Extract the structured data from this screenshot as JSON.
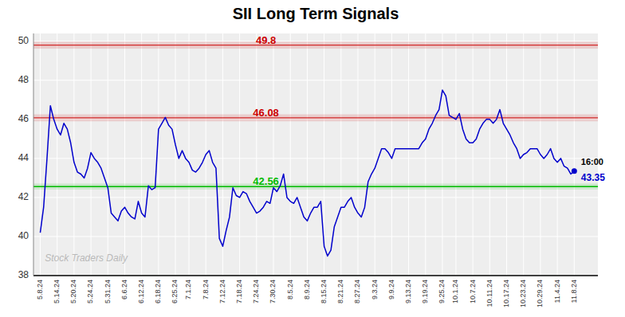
{
  "chart_data": {
    "type": "line",
    "title": "SII Long Term Signals",
    "watermark": "Stock Traders Daily",
    "color": "#0000cc",
    "grid": true,
    "ylim": [
      38,
      50.4
    ],
    "yticks": [
      38,
      40,
      42,
      44,
      46,
      48,
      50
    ],
    "hlines": [
      {
        "value": 49.8,
        "label": "49.8",
        "color": "#cc0000"
      },
      {
        "value": 46.08,
        "label": "46.08",
        "color": "#cc0000"
      },
      {
        "value": 42.56,
        "label": "42.56",
        "color": "#00bb00"
      }
    ],
    "last_point": {
      "value": 43.35,
      "label": "16:00",
      "value_label": "43.35"
    },
    "categories": [
      "5.8.24",
      null,
      null,
      null,
      null,
      "5.14.24",
      null,
      null,
      null,
      null,
      "5.20.24",
      null,
      null,
      null,
      null,
      "5.24.24",
      null,
      null,
      null,
      null,
      "5.31.24",
      null,
      null,
      null,
      null,
      "6.6.24",
      null,
      null,
      null,
      null,
      "6.12.24",
      null,
      null,
      null,
      null,
      "6.18.24",
      null,
      null,
      null,
      null,
      "6.25.24",
      null,
      null,
      null,
      "7.1.24",
      null,
      null,
      null,
      null,
      "7.8.24",
      null,
      null,
      null,
      null,
      "7.12.24",
      null,
      null,
      null,
      null,
      "7.18.24",
      null,
      null,
      null,
      null,
      "7.24.24",
      null,
      null,
      null,
      null,
      "7.30.24",
      null,
      null,
      null,
      null,
      "8.5.24",
      null,
      null,
      null,
      null,
      "8.9.24",
      null,
      null,
      null,
      null,
      "8.15.24",
      null,
      null,
      null,
      null,
      "8.21.24",
      null,
      null,
      null,
      null,
      "8.27.24",
      null,
      null,
      null,
      null,
      "9.3.24",
      null,
      null,
      null,
      null,
      "9.9.24",
      null,
      null,
      null,
      null,
      "9.13.24",
      null,
      null,
      null,
      null,
      "9.19.24",
      null,
      null,
      null,
      null,
      "9.25.24",
      null,
      null,
      null,
      "10.1.24",
      null,
      null,
      null,
      null,
      "10.7.24",
      null,
      null,
      null,
      null,
      "10.11.24",
      null,
      null,
      null,
      null,
      "10.17.24",
      null,
      null,
      null,
      null,
      "10.23.24",
      null,
      null,
      null,
      null,
      "10.29.24",
      null,
      null,
      null,
      null,
      "11.4.24",
      null,
      null,
      null,
      null,
      "11.8.24"
    ],
    "values": [
      40.2,
      41.5,
      44.0,
      46.7,
      46.0,
      45.5,
      45.2,
      45.8,
      45.5,
      44.8,
      43.8,
      43.3,
      43.2,
      43.0,
      43.5,
      44.3,
      44.0,
      43.8,
      43.5,
      43.0,
      42.5,
      41.2,
      41.0,
      40.8,
      41.3,
      41.5,
      41.2,
      41.0,
      40.9,
      41.8,
      41.2,
      41.0,
      42.6,
      42.4,
      42.5,
      45.5,
      45.8,
      46.1,
      45.7,
      45.5,
      44.7,
      44.0,
      44.4,
      44.0,
      43.8,
      43.4,
      43.3,
      43.5,
      43.8,
      44.2,
      44.4,
      43.8,
      43.5,
      39.9,
      39.5,
      40.3,
      41.0,
      42.5,
      42.1,
      42.0,
      42.3,
      42.2,
      41.8,
      41.5,
      41.2,
      41.3,
      41.5,
      41.8,
      41.7,
      42.5,
      42.3,
      42.6,
      43.2,
      42.0,
      41.8,
      41.7,
      42.0,
      41.5,
      41.0,
      40.8,
      41.2,
      41.5,
      41.5,
      41.8,
      39.5,
      39.0,
      39.3,
      40.5,
      41.0,
      41.5,
      41.5,
      41.8,
      42.0,
      41.5,
      41.2,
      41.0,
      41.5,
      42.8,
      43.2,
      43.5,
      44.0,
      44.5,
      44.5,
      44.3,
      44.0,
      44.5,
      44.5,
      44.5,
      44.5,
      44.5,
      44.5,
      44.5,
      44.5,
      44.8,
      45.0,
      45.5,
      45.8,
      46.2,
      46.5,
      47.5,
      47.2,
      46.2,
      46.1,
      46.0,
      46.3,
      45.5,
      45.0,
      44.8,
      44.8,
      45.0,
      45.5,
      45.8,
      46.0,
      46.0,
      45.8,
      46.0,
      46.5,
      45.8,
      45.5,
      45.2,
      44.8,
      44.5,
      44.0,
      44.2,
      44.3,
      44.5,
      44.5,
      44.5,
      44.2,
      44.0,
      44.2,
      44.5,
      44.0,
      43.8,
      44.0,
      43.6,
      43.5,
      43.2,
      43.35
    ]
  }
}
